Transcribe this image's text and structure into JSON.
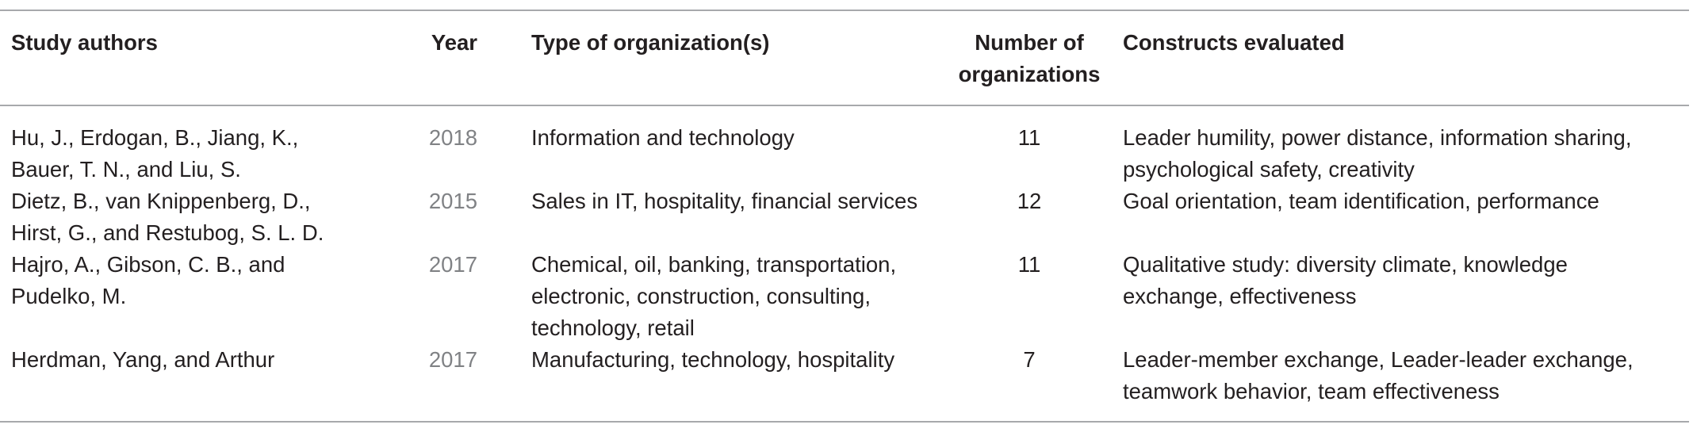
{
  "table": {
    "headers": {
      "authors": "Study authors",
      "year": "Year",
      "type": "Type of organization(s)",
      "number_line1": "Number of",
      "number_line2": "organizations",
      "constructs": "Constructs evaluated"
    },
    "rows": [
      {
        "authors": [
          "Hu, J., Erdogan, B., Jiang, K.,",
          "Bauer, T. N., and Liu, S."
        ],
        "year": "2018",
        "type": [
          "Information and technology"
        ],
        "number": "11",
        "constructs": [
          "Leader humility, power distance, information sharing,",
          "psychological safety, creativity"
        ]
      },
      {
        "authors": [
          "Dietz, B., van Knippenberg, D.,",
          "Hirst, G., and Restubog, S. L. D."
        ],
        "year": "2015",
        "type": [
          "Sales in IT, hospitality, financial services"
        ],
        "number": "12",
        "constructs": [
          "Goal orientation, team identification, performance"
        ]
      },
      {
        "authors": [
          "Hajro, A., Gibson, C. B., and",
          "Pudelko, M."
        ],
        "year": "2017",
        "type": [
          "Chemical, oil, banking, transportation,",
          "electronic, construction, consulting,",
          "technology, retail"
        ],
        "number": "11",
        "constructs": [
          "Qualitative study: diversity climate, knowledge",
          "exchange, effectiveness"
        ]
      },
      {
        "authors": [
          "Herdman, Yang, and Arthur"
        ],
        "year": "2017",
        "type": [
          "Manufacturing, technology, hospitality"
        ],
        "number": "7",
        "constructs": [
          "Leader-member exchange, Leader-leader exchange,",
          "teamwork behavior, team effectiveness"
        ]
      }
    ]
  }
}
